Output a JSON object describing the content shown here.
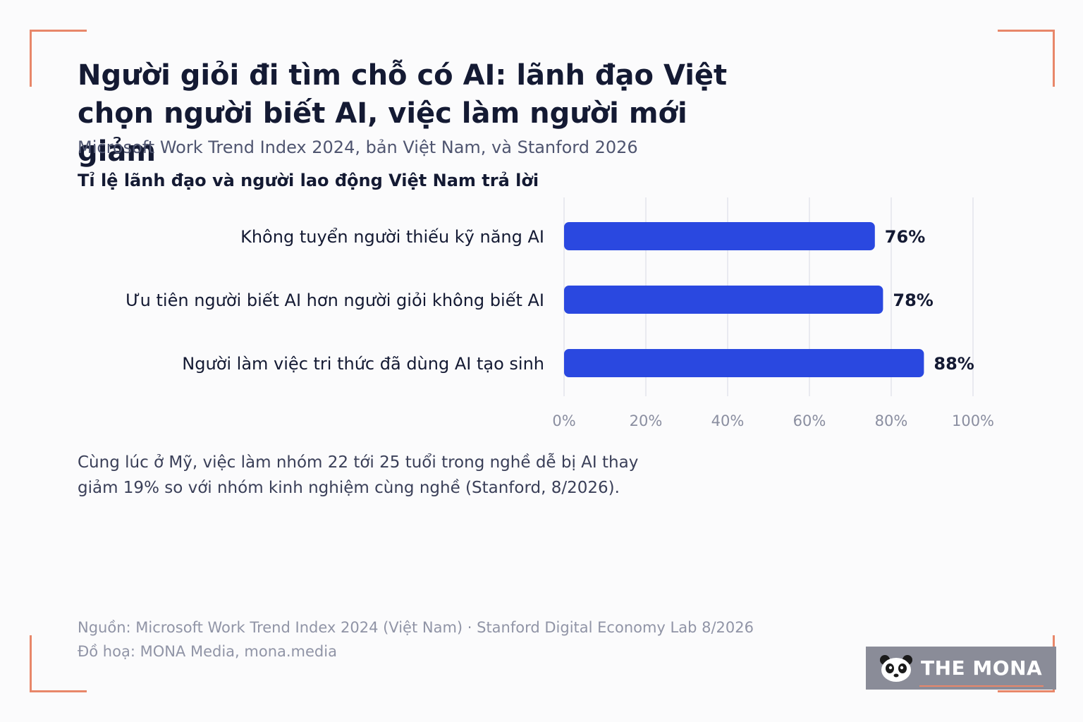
{
  "title_lines": [
    "Người giỏi đi tìm chỗ có AI: lãnh đạo Việt",
    "chọn người biết AI, việc làm người mới giảm"
  ],
  "subtitle": "Microsoft Work Trend Index 2024, bản Việt Nam, và Stanford 2026",
  "note": "Cùng lúc ở Mỹ, việc làm nhóm 22 tới 25 tuổi trong nghề dễ bị AI thay giảm 19% so với nhóm kinh nghiệm cùng nghề (Stanford, 8/2026).",
  "source_lines": [
    "Nguồn: Microsoft Work Trend Index 2024 (Việt Nam) · Stanford Digital Economy Lab 8/2026",
    "Đồ hoạ: MONA Media, mona.media"
  ],
  "brand": {
    "name": "THE MONA",
    "icon": "panda-icon",
    "background": "#8a8c98",
    "accent": "#e8876a"
  },
  "colors": {
    "bar": "#2a48e0",
    "corner": "#e8876a",
    "text": "#141a33"
  },
  "chart_data": {
    "type": "bar",
    "orientation": "horizontal",
    "title": "Tỉ lệ lãnh đạo và người lao động Việt Nam trả lời",
    "categories": [
      "Không tuyển người thiếu kỹ năng AI",
      "Ưu tiên người biết AI hơn người giỏi không biết AI",
      "Người làm việc tri thức đã dùng AI tạo sinh"
    ],
    "values": [
      76,
      78,
      88
    ],
    "value_labels": [
      "76%",
      "78%",
      "88%"
    ],
    "xlim": [
      0,
      100
    ],
    "x_ticks": [
      0,
      20,
      40,
      60,
      80,
      100
    ],
    "x_tick_labels": [
      "0%",
      "20%",
      "40%",
      "60%",
      "80%",
      "100%"
    ],
    "grid": true,
    "xlabel": "",
    "ylabel": ""
  }
}
